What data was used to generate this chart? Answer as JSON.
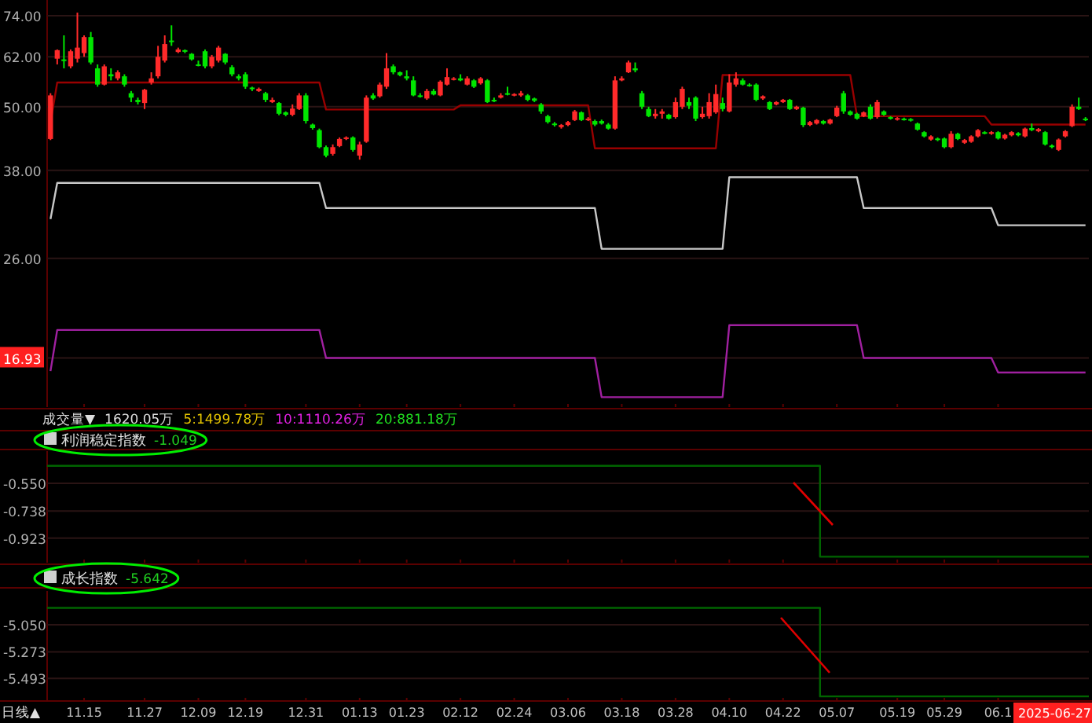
{
  "chart_data": [
    {
      "type": "candlestick",
      "tick_labels": "y",
      "log": true,
      "grid": "y",
      "ylim": [
        13.7,
        79.2
      ],
      "yticks": [
        {
          "value": 74,
          "label": "74.00"
        },
        {
          "value": 62,
          "label": "62.00"
        },
        {
          "value": 50,
          "label": "50.00"
        },
        {
          "value": 38,
          "label": "38.00"
        },
        {
          "value": 26,
          "label": "26.00"
        },
        {
          "value": 16.93,
          "label": "16.93"
        }
      ],
      "annotations": [
        "成交量▼",
        "1620.05万",
        "5:1499.78万",
        "10:1110.26万",
        "20:881.18万"
      ],
      "categories": [
        null,
        null,
        null,
        null,
        null,
        "11.15",
        null,
        null,
        null,
        null,
        null,
        null,
        null,
        null,
        "11.27",
        null,
        null,
        null,
        null,
        null,
        null,
        null,
        "12.09",
        null,
        null,
        null,
        null,
        null,
        null,
        "12.19",
        null,
        null,
        null,
        null,
        null,
        null,
        null,
        null,
        "12.31",
        null,
        null,
        null,
        null,
        null,
        null,
        null,
        "01.13",
        null,
        null,
        null,
        null,
        null,
        null,
        "01.23",
        null,
        null,
        null,
        null,
        null,
        null,
        null,
        "02.12",
        null,
        null,
        null,
        null,
        null,
        null,
        null,
        "02.24",
        null,
        null,
        null,
        null,
        null,
        null,
        null,
        "03.06",
        null,
        null,
        null,
        null,
        null,
        null,
        null,
        "03.18",
        null,
        null,
        null,
        null,
        null,
        null,
        null,
        "03.28",
        null,
        null,
        null,
        null,
        null,
        null,
        null,
        "04.10",
        null,
        null,
        null,
        null,
        null,
        null,
        null,
        "04.22",
        null,
        null,
        null,
        null,
        null,
        null,
        null,
        "05.07",
        null,
        null,
        null,
        null,
        null,
        null,
        null,
        null,
        "05.19",
        null,
        null,
        null,
        null,
        null,
        null,
        "05.29",
        null,
        null,
        null,
        null,
        null,
        null,
        null,
        "06.1",
        null,
        null,
        null,
        null,
        null,
        null,
        null,
        null,
        null,
        null,
        null,
        null,
        null
      ],
      "ohlc": [
        [
          43.5,
          53,
          43.3,
          52.5
        ],
        [
          61.5,
          64,
          60,
          63.8
        ],
        [
          61.3,
          68,
          59,
          61
        ],
        [
          59.5,
          64,
          59,
          63.5
        ],
        [
          61.5,
          75,
          60.5,
          64.5
        ],
        [
          63,
          68,
          62,
          67.5
        ],
        [
          67.5,
          69,
          60,
          60.5
        ],
        [
          59,
          60,
          54.5,
          55
        ],
        [
          55,
          60,
          54.8,
          59.5
        ],
        [
          57.5,
          59,
          56,
          57
        ],
        [
          56.5,
          58.5,
          56,
          58
        ],
        [
          57,
          57.5,
          54.5,
          55
        ],
        [
          53,
          53.5,
          51,
          52
        ],
        [
          51.5,
          52,
          50.5,
          51
        ],
        [
          50.8,
          54,
          49.5,
          53.8
        ],
        [
          55.5,
          58,
          55,
          56.5
        ],
        [
          57,
          65,
          56.5,
          62
        ],
        [
          61,
          68,
          60.5,
          65.5
        ],
        [
          66.5,
          71,
          65,
          66.4
        ],
        [
          63.3,
          64.5,
          63,
          64
        ],
        [
          63.8,
          64,
          63,
          63.5
        ],
        [
          62.8,
          63,
          61,
          61.3
        ],
        [
          60,
          61,
          59.5,
          59.8
        ],
        [
          63.5,
          64,
          59,
          59.5
        ],
        [
          59.5,
          62.5,
          59,
          62
        ],
        [
          61,
          65,
          60.5,
          64.5
        ],
        [
          62.8,
          63,
          60,
          60.5
        ],
        [
          59.3,
          59.8,
          57,
          57.5
        ],
        [
          57,
          57.5,
          56,
          56.5
        ],
        [
          57.5,
          58,
          54,
          54.5
        ],
        [
          54.3,
          54.5,
          53.5,
          54
        ],
        [
          53.5,
          54.3,
          53.3,
          54
        ],
        [
          53,
          53.3,
          51,
          51.5
        ],
        [
          51,
          52,
          50.8,
          51.5
        ],
        [
          50.8,
          51,
          48.2,
          48.5
        ],
        [
          48.8,
          49,
          48,
          48.3
        ],
        [
          48.3,
          50.5,
          48,
          49.6
        ],
        [
          49.5,
          53,
          49.3,
          52.5
        ],
        [
          52.5,
          53,
          46.5,
          47
        ],
        [
          46.3,
          46.5,
          45.3,
          45.6
        ],
        [
          45.2,
          45.5,
          41.8,
          42
        ],
        [
          42,
          42.3,
          40.2,
          40.5
        ],
        [
          40.8,
          42.5,
          40.5,
          42
        ],
        [
          42.2,
          43.8,
          42,
          43.5
        ],
        [
          43.5,
          44,
          43.3,
          43.8
        ],
        [
          43.8,
          44,
          41.2,
          41.5
        ],
        [
          40.5,
          43,
          39.8,
          42.5
        ],
        [
          43,
          52.5,
          42.8,
          52
        ],
        [
          52.5,
          53,
          51.5,
          51.8
        ],
        [
          52.3,
          55.5,
          52,
          55
        ],
        [
          54.5,
          63,
          54,
          59
        ],
        [
          59.5,
          60,
          57.5,
          58
        ],
        [
          58,
          58.2,
          57,
          57.3
        ],
        [
          57,
          58.5,
          56,
          56.5
        ],
        [
          56,
          57,
          52.3,
          52.5
        ],
        [
          52.5,
          53,
          52,
          52.3
        ],
        [
          51.8,
          54,
          51.5,
          53.5
        ],
        [
          53.5,
          54,
          52.5,
          52.7
        ],
        [
          52.5,
          56,
          52.3,
          55.7
        ],
        [
          55,
          59,
          54.8,
          56.8
        ],
        [
          56.2,
          56.8,
          56,
          56.5
        ],
        [
          56.5,
          57.5,
          55.8,
          56
        ],
        [
          55,
          57,
          54.8,
          56.5
        ],
        [
          56,
          56.3,
          54.2,
          54.5
        ],
        [
          55.3,
          56.8,
          55,
          56.5
        ],
        [
          56,
          56.3,
          50.8,
          51
        ],
        [
          51.5,
          52,
          51,
          51.2
        ],
        [
          52,
          53,
          51.8,
          52.5
        ],
        [
          53,
          54.5,
          52.5,
          52.8
        ],
        [
          52.5,
          53,
          52.3,
          52.8
        ],
        [
          52.5,
          53.5,
          52.2,
          53
        ],
        [
          52.5,
          52.8,
          51.2,
          51.5
        ],
        [
          51.8,
          52,
          51,
          51.3
        ],
        [
          50.5,
          50.8,
          48.5,
          49
        ],
        [
          48,
          48.3,
          46.5,
          46.8
        ],
        [
          46.5,
          46.8,
          45.9,
          46.2
        ],
        [
          45.8,
          46.4,
          45.5,
          46.2
        ],
        [
          46.2,
          47,
          46,
          46.8
        ],
        [
          47.2,
          49.3,
          47,
          49
        ],
        [
          48.8,
          49,
          47,
          47.2
        ],
        [
          47.2,
          47.8,
          47,
          47.5
        ],
        [
          47,
          47.3,
          46,
          46.3
        ],
        [
          47,
          47.3,
          46.3,
          46.5
        ],
        [
          46.3,
          46.6,
          45.3,
          45.5
        ],
        [
          45.5,
          57,
          45.3,
          56
        ],
        [
          56,
          57,
          55.8,
          56.5
        ],
        [
          58,
          61,
          57.8,
          60.5
        ],
        [
          59,
          60.5,
          58,
          58.5
        ],
        [
          53,
          53.5,
          49.5,
          50
        ],
        [
          49.5,
          50,
          47.8,
          48
        ],
        [
          48,
          49.5,
          47.5,
          48.5
        ],
        [
          48.5,
          49.5,
          47.5,
          49
        ],
        [
          48.3,
          48.5,
          47.3,
          47.5
        ],
        [
          47.8,
          52,
          47.5,
          51
        ],
        [
          50,
          54.5,
          49.5,
          54
        ],
        [
          51,
          52,
          49.5,
          50.2
        ],
        [
          52,
          52.3,
          47,
          47.5
        ],
        [
          47.8,
          50,
          47.5,
          48.5
        ],
        [
          48,
          53,
          47.5,
          51
        ],
        [
          48.8,
          55,
          48.5,
          52.8
        ],
        [
          50.8,
          52,
          49,
          49.5
        ],
        [
          49,
          57.5,
          48.8,
          55.5
        ],
        [
          55,
          58,
          54.5,
          56.5
        ],
        [
          56,
          56.5,
          54.8,
          55
        ],
        [
          55,
          55.3,
          54.5,
          54.8
        ],
        [
          55,
          55.3,
          51.2,
          51.5
        ],
        [
          51.8,
          52.5,
          51.5,
          52.3
        ],
        [
          51,
          51.2,
          49.3,
          49.5
        ],
        [
          50.5,
          51.2,
          50.3,
          51
        ],
        [
          51,
          51.7,
          50.8,
          51.5
        ],
        [
          51.5,
          51.7,
          49.3,
          49.5
        ],
        [
          49.5,
          50.2,
          49.3,
          50
        ],
        [
          49.8,
          50,
          45.8,
          46.2
        ],
        [
          46.2,
          47,
          46,
          46.8
        ],
        [
          46.5,
          47.4,
          46.3,
          47.2
        ],
        [
          47,
          47.2,
          46.3,
          46.5
        ],
        [
          46.5,
          47.5,
          46.3,
          47.3
        ],
        [
          48,
          50.2,
          47.8,
          49.8
        ],
        [
          53,
          53.5,
          48.5,
          49
        ],
        [
          49,
          49.2,
          48.1,
          48.3
        ],
        [
          48.5,
          48.7,
          47.3,
          47.5
        ],
        [
          48,
          49,
          47.8,
          48.8
        ],
        [
          50,
          50.5,
          47.3,
          47.5
        ],
        [
          47.8,
          51.5,
          47.5,
          51
        ],
        [
          49,
          49.2,
          48.1,
          48.3
        ],
        [
          47.8,
          48,
          47.3,
          47.5
        ],
        [
          47.3,
          47.8,
          47.1,
          47.6
        ],
        [
          47.5,
          47.7,
          47.1,
          47.3
        ],
        [
          47.4,
          47.6,
          46.9,
          47.1
        ],
        [
          46.5,
          46.7,
          45.1,
          45.3
        ],
        [
          44.8,
          45,
          43.8,
          44
        ],
        [
          43.4,
          44.2,
          43.2,
          44
        ],
        [
          43.6,
          43.8,
          43.1,
          43.3
        ],
        [
          43.6,
          43.8,
          41.8,
          42
        ],
        [
          42,
          45,
          41.8,
          44.5
        ],
        [
          44.5,
          44.7,
          43.3,
          43.5
        ],
        [
          42.8,
          43.5,
          42.6,
          43.3
        ],
        [
          43,
          44.2,
          42.8,
          44
        ],
        [
          44,
          45.4,
          43.8,
          45.2
        ],
        [
          44.8,
          45,
          44.4,
          44.6
        ],
        [
          44.5,
          45,
          44.3,
          44.8
        ],
        [
          44.8,
          45,
          43.4,
          43.6
        ],
        [
          43.6,
          44.5,
          43.4,
          44.3
        ],
        [
          44.2,
          45,
          44,
          44.8
        ],
        [
          44.6,
          44.8,
          44,
          44.2
        ],
        [
          44,
          45.7,
          43.8,
          45.5
        ],
        [
          45.6,
          46.5,
          45,
          45.2
        ],
        [
          45,
          45.6,
          44.8,
          45.4
        ],
        [
          44.8,
          45,
          42.3,
          42.5
        ],
        [
          42.3,
          42.5,
          41.8,
          42
        ],
        [
          41.5,
          43.6,
          41.3,
          43.4
        ],
        [
          44,
          45.2,
          43.8,
          45
        ],
        [
          46,
          50.5,
          45.8,
          50
        ],
        [
          50,
          52,
          49.3,
          49.5
        ],
        [
          47.5,
          47.8,
          47,
          47.2
        ]
      ],
      "series": [
        {
          "type": "line",
          "color": "#990000",
          "values": [
            46.7,
            55.5,
            55.5,
            55.5,
            55.5,
            55.5,
            55.5,
            55.5,
            55.5,
            55.5,
            55.5,
            55.5,
            55.5,
            55.5,
            55.5,
            55.5,
            55.5,
            55.5,
            55.5,
            55.5,
            55.5,
            55.5,
            55.5,
            55.5,
            55.5,
            55.5,
            55.5,
            55.5,
            55.5,
            55.5,
            55.5,
            55.5,
            55.5,
            55.5,
            55.5,
            55.5,
            55.5,
            55.5,
            55.5,
            55.5,
            55.5,
            49.4,
            49.4,
            49.4,
            49.4,
            49.4,
            49.4,
            49.4,
            49.4,
            49.4,
            49.4,
            49.4,
            49.4,
            49.4,
            49.4,
            49.4,
            49.4,
            49.4,
            49.4,
            49.4,
            49.4,
            50.3,
            50.3,
            50.3,
            50.3,
            50.3,
            50.3,
            50.3,
            50.3,
            50.3,
            50.3,
            50.3,
            50.3,
            50.3,
            50.3,
            50.3,
            50.3,
            50.3,
            50.3,
            50.3,
            50.3,
            41.8,
            41.8,
            41.8,
            41.8,
            41.8,
            41.8,
            41.8,
            41.8,
            41.8,
            41.8,
            41.8,
            41.8,
            41.8,
            41.8,
            41.8,
            41.8,
            41.8,
            41.8,
            41.8,
            57.3,
            57.3,
            57.3,
            57.3,
            57.3,
            57.3,
            57.3,
            57.3,
            57.3,
            57.3,
            57.3,
            57.3,
            57.3,
            57.3,
            57.3,
            57.3,
            57.3,
            57.3,
            57.3,
            57.3,
            48.0,
            48.0,
            48.0,
            48.0,
            48.0,
            48.0,
            48.0,
            48.0,
            48.0,
            48.0,
            48.0,
            48.0,
            48.0,
            48.0,
            48.0,
            48.0,
            48.0,
            48.0,
            48.0,
            48.0,
            46.3,
            46.3,
            46.3,
            46.3,
            46.3,
            46.3,
            46.3,
            46.3,
            46.3,
            46.3,
            46.3,
            46.3,
            46.3,
            46.3,
            46.3
          ]
        },
        {
          "type": "line",
          "color": "#c8c8c8",
          "values": [
            30.8,
            36.0,
            36.0,
            36.0,
            36.0,
            36.0,
            36.0,
            36.0,
            36.0,
            36.0,
            36.0,
            36.0,
            36.0,
            36.0,
            36.0,
            36.0,
            36.0,
            36.0,
            36.0,
            36.0,
            36.0,
            36.0,
            36.0,
            36.0,
            36.0,
            36.0,
            36.0,
            36.0,
            36.0,
            36.0,
            36.0,
            36.0,
            36.0,
            36.0,
            36.0,
            36.0,
            36.0,
            36.0,
            36.0,
            36.0,
            36.0,
            32.3,
            32.3,
            32.3,
            32.3,
            32.3,
            32.3,
            32.3,
            32.3,
            32.3,
            32.3,
            32.3,
            32.3,
            32.3,
            32.3,
            32.3,
            32.3,
            32.3,
            32.3,
            32.3,
            32.3,
            32.3,
            32.3,
            32.3,
            32.3,
            32.3,
            32.3,
            32.3,
            32.3,
            32.3,
            32.3,
            32.3,
            32.3,
            32.3,
            32.3,
            32.3,
            32.3,
            32.3,
            32.3,
            32.3,
            32.3,
            32.3,
            27.1,
            27.1,
            27.1,
            27.1,
            27.1,
            27.1,
            27.1,
            27.1,
            27.1,
            27.1,
            27.1,
            27.1,
            27.1,
            27.1,
            27.1,
            27.1,
            27.1,
            27.1,
            27.1,
            36.9,
            36.9,
            36.9,
            36.9,
            36.9,
            36.9,
            36.9,
            36.9,
            36.9,
            36.9,
            36.9,
            36.9,
            36.9,
            36.9,
            36.9,
            36.9,
            36.9,
            36.9,
            36.9,
            36.9,
            32.3,
            32.3,
            32.3,
            32.3,
            32.3,
            32.3,
            32.3,
            32.3,
            32.3,
            32.3,
            32.3,
            32.3,
            32.3,
            32.3,
            32.3,
            32.3,
            32.3,
            32.3,
            32.3,
            32.3,
            30.0,
            30.0,
            30.0,
            30.0,
            30.0,
            30.0,
            30.0,
            30.0,
            30.0,
            30.0,
            30.0,
            30.0,
            30.0,
            30.0
          ]
        },
        {
          "type": "line",
          "color": "#a020a0",
          "values": [
            16.0,
            19.1,
            19.1,
            19.1,
            19.1,
            19.1,
            19.1,
            19.1,
            19.1,
            19.1,
            19.1,
            19.1,
            19.1,
            19.1,
            19.1,
            19.1,
            19.1,
            19.1,
            19.1,
            19.1,
            19.1,
            19.1,
            19.1,
            19.1,
            19.1,
            19.1,
            19.1,
            19.1,
            19.1,
            19.1,
            19.1,
            19.1,
            19.1,
            19.1,
            19.1,
            19.1,
            19.1,
            19.1,
            19.1,
            19.1,
            19.1,
            16.93,
            16.93,
            16.93,
            16.93,
            16.93,
            16.93,
            16.93,
            16.93,
            16.93,
            16.93,
            16.93,
            16.93,
            16.93,
            16.93,
            16.93,
            16.93,
            16.93,
            16.93,
            16.93,
            16.93,
            16.93,
            16.93,
            16.93,
            16.93,
            16.93,
            16.93,
            16.93,
            16.93,
            16.93,
            16.93,
            16.93,
            16.93,
            16.93,
            16.93,
            16.93,
            16.93,
            16.93,
            16.93,
            16.93,
            16.93,
            16.93,
            14.3,
            14.3,
            14.3,
            14.3,
            14.3,
            14.3,
            14.3,
            14.3,
            14.3,
            14.3,
            14.3,
            14.3,
            14.3,
            14.3,
            14.3,
            14.3,
            14.3,
            14.3,
            14.3,
            19.5,
            19.5,
            19.5,
            19.5,
            19.5,
            19.5,
            19.5,
            19.5,
            19.5,
            19.5,
            19.5,
            19.5,
            19.5,
            19.5,
            19.5,
            19.5,
            19.5,
            19.5,
            19.5,
            19.5,
            16.93,
            16.93,
            16.93,
            16.93,
            16.93,
            16.93,
            16.93,
            16.93,
            16.93,
            16.93,
            16.93,
            16.93,
            16.93,
            16.93,
            16.93,
            16.93,
            16.93,
            16.93,
            16.93,
            16.93,
            15.9,
            15.9,
            15.9,
            15.9,
            15.9,
            15.9,
            15.9,
            15.9,
            15.9,
            15.9,
            15.9,
            15.9,
            15.9,
            15.9
          ]
        }
      ]
    },
    {
      "type": "step",
      "tick_labels": "y",
      "grid": "y",
      "title": "利润稳定指数",
      "annotations": [
        "-1.049"
      ],
      "ylim": [
        -1.09,
        -0.33
      ],
      "yticks": [
        {
          "value": -0.55,
          "label": "-0.550"
        },
        {
          "value": -0.738,
          "label": "-0.738"
        },
        {
          "value": -0.923,
          "label": "-0.923"
        }
      ],
      "categories": [
        null,
        null,
        null,
        null,
        null,
        "11.15",
        null,
        null,
        null,
        null,
        null,
        null,
        null,
        null,
        "11.27",
        null,
        null,
        null,
        null,
        null,
        null,
        null,
        "12.09",
        null,
        null,
        null,
        null,
        null,
        null,
        "12.19",
        null,
        null,
        null,
        null,
        null,
        null,
        null,
        null,
        "12.31",
        null,
        null,
        null,
        null,
        null,
        null,
        null,
        "01.13",
        null,
        null,
        null,
        null,
        null,
        null,
        "01.23",
        null,
        null,
        null,
        null,
        null,
        null,
        null,
        "02.12",
        null,
        null,
        null,
        null,
        null,
        null,
        null,
        "02.24",
        null,
        null,
        null,
        null,
        null,
        null,
        null,
        "03.06",
        null,
        null,
        null,
        null,
        null,
        null,
        null,
        "03.18",
        null,
        null,
        null,
        null,
        null,
        null,
        null,
        "03.28",
        null,
        null,
        null,
        null,
        null,
        null,
        null,
        "04.10",
        null,
        null,
        null,
        null,
        null,
        null,
        null,
        "04.22",
        null,
        null,
        null,
        null,
        null,
        null,
        null,
        "05.07",
        null,
        null,
        null,
        null,
        null,
        null,
        null,
        null,
        "05.19",
        null,
        null,
        null,
        null,
        null,
        null,
        "05.29",
        null,
        null,
        null,
        null,
        null,
        null,
        null,
        "06.1",
        null,
        null,
        null,
        null,
        null,
        null,
        null,
        null,
        null,
        null,
        null,
        null,
        null
      ],
      "series": [
        {
          "color": "#006400",
          "values": [
            -0.43,
            -0.43,
            -0.43,
            -0.43,
            -0.43,
            -0.43,
            -0.43,
            -0.43,
            -0.43,
            -0.43,
            -0.43,
            -0.43,
            -0.43,
            -0.43,
            -0.43,
            -0.43,
            -0.43,
            -0.43,
            -0.43,
            -0.43,
            -0.43,
            -0.43,
            -0.43,
            -0.43,
            -0.43,
            -0.43,
            -0.43,
            -0.43,
            -0.43,
            -0.43,
            -0.43,
            -0.43,
            -0.43,
            -0.43,
            -0.43,
            -0.43,
            -0.43,
            -0.43,
            -0.43,
            -0.43,
            -0.43,
            -0.43,
            -0.43,
            -0.43,
            -0.43,
            -0.43,
            -0.43,
            -0.43,
            -0.43,
            -0.43,
            -0.43,
            -0.43,
            -0.43,
            -0.43,
            -0.43,
            -0.43,
            -0.43,
            -0.43,
            -0.43,
            -0.43,
            -0.43,
            -0.43,
            -0.43,
            -0.43,
            -0.43,
            -0.43,
            -0.43,
            -0.43,
            -0.43,
            -0.43,
            -0.43,
            -0.43,
            -0.43,
            -0.43,
            -0.43,
            -0.43,
            -0.43,
            -0.43,
            -0.43,
            -0.43,
            -0.43,
            -0.43,
            -0.43,
            -0.43,
            -0.43,
            -0.43,
            -0.43,
            -0.43,
            -0.43,
            -0.43,
            -0.43,
            -0.43,
            -0.43,
            -0.43,
            -0.43,
            -0.43,
            -0.43,
            -0.43,
            -0.43,
            -0.43,
            -0.43,
            -0.43,
            -0.43,
            -0.43,
            -0.43,
            -0.43,
            -0.43,
            -0.43,
            -0.43,
            -0.43,
            -0.43,
            -0.43,
            -0.43,
            -0.43,
            -0.43,
            -1.049,
            -1.049,
            -1.049,
            -1.049,
            -1.049,
            -1.049,
            -1.049,
            -1.049,
            -1.049,
            -1.049,
            -1.049,
            -1.049,
            -1.049,
            -1.049,
            -1.049,
            -1.049,
            -1.049,
            -1.049,
            -1.049,
            -1.049,
            -1.049,
            -1.049,
            -1.049,
            -1.049,
            -1.049,
            -1.049,
            -1.049,
            -1.049,
            -1.049,
            -1.049,
            -1.049,
            -1.049,
            -1.049,
            -1.049,
            -1.049,
            -1.049,
            -1.049,
            -1.049,
            -1.049,
            -1.049
          ]
        }
      ]
    },
    {
      "type": "step",
      "grid": "y",
      "title": "成长指数",
      "annotations": [
        "-5.642",
        "日线▲",
        "2025-06-27"
      ],
      "ylim": [
        -5.68,
        -4.77
      ],
      "yticks": [
        {
          "value": -5.05,
          "label": "-5.050"
        },
        {
          "value": -5.273,
          "label": "-5.273"
        },
        {
          "value": -5.493,
          "label": "-5.493"
        }
      ],
      "categories": [
        null,
        null,
        null,
        null,
        null,
        "11.15",
        null,
        null,
        null,
        null,
        null,
        null,
        null,
        null,
        "11.27",
        null,
        null,
        null,
        null,
        null,
        null,
        null,
        "12.09",
        null,
        null,
        null,
        null,
        null,
        null,
        "12.19",
        null,
        null,
        null,
        null,
        null,
        null,
        null,
        null,
        "12.31",
        null,
        null,
        null,
        null,
        null,
        null,
        null,
        "01.13",
        null,
        null,
        null,
        null,
        null,
        null,
        "01.23",
        null,
        null,
        null,
        null,
        null,
        null,
        null,
        "02.12",
        null,
        null,
        null,
        null,
        null,
        null,
        null,
        "02.24",
        null,
        null,
        null,
        null,
        null,
        null,
        null,
        "03.06",
        null,
        null,
        null,
        null,
        null,
        null,
        null,
        "03.18",
        null,
        null,
        null,
        null,
        null,
        null,
        null,
        "03.28",
        null,
        null,
        null,
        null,
        null,
        null,
        null,
        "04.10",
        null,
        null,
        null,
        null,
        null,
        null,
        null,
        "04.22",
        null,
        null,
        null,
        null,
        null,
        null,
        null,
        "05.07",
        null,
        null,
        null,
        null,
        null,
        null,
        null,
        null,
        "05.19",
        null,
        null,
        null,
        null,
        null,
        null,
        "05.29",
        null,
        null,
        null,
        null,
        null,
        null,
        null,
        "06.1",
        null,
        null,
        null,
        null,
        null,
        null,
        null,
        null,
        null,
        null,
        null,
        null,
        null
      ],
      "series": [
        {
          "color": "#006400",
          "values": [
            -4.91,
            -4.91,
            -4.91,
            -4.91,
            -4.91,
            -4.91,
            -4.91,
            -4.91,
            -4.91,
            -4.91,
            -4.91,
            -4.91,
            -4.91,
            -4.91,
            -4.91,
            -4.91,
            -4.91,
            -4.91,
            -4.91,
            -4.91,
            -4.91,
            -4.91,
            -4.91,
            -4.91,
            -4.91,
            -4.91,
            -4.91,
            -4.91,
            -4.91,
            -4.91,
            -4.91,
            -4.91,
            -4.91,
            -4.91,
            -4.91,
            -4.91,
            -4.91,
            -4.91,
            -4.91,
            -4.91,
            -4.91,
            -4.91,
            -4.91,
            -4.91,
            -4.91,
            -4.91,
            -4.91,
            -4.91,
            -4.91,
            -4.91,
            -4.91,
            -4.91,
            -4.91,
            -4.91,
            -4.91,
            -4.91,
            -4.91,
            -4.91,
            -4.91,
            -4.91,
            -4.91,
            -4.91,
            -4.91,
            -4.91,
            -4.91,
            -4.91,
            -4.91,
            -4.91,
            -4.91,
            -4.91,
            -4.91,
            -4.91,
            -4.91,
            -4.91,
            -4.91,
            -4.91,
            -4.91,
            -4.91,
            -4.91,
            -4.91,
            -4.91,
            -4.91,
            -4.91,
            -4.91,
            -4.91,
            -4.91,
            -4.91,
            -4.91,
            -4.91,
            -4.91,
            -4.91,
            -4.91,
            -4.91,
            -4.91,
            -4.91,
            -4.91,
            -4.91,
            -4.91,
            -4.91,
            -4.91,
            -4.91,
            -4.91,
            -4.91,
            -4.91,
            -4.91,
            -4.91,
            -4.91,
            -4.91,
            -4.91,
            -4.91,
            -4.91,
            -4.91,
            -4.91,
            -4.91,
            -4.91,
            -5.642,
            -5.642,
            -5.642,
            -5.642,
            -5.642,
            -5.642,
            -5.642,
            -5.642,
            -5.642,
            -5.642,
            -5.642,
            -5.642,
            -5.642,
            -5.642,
            -5.642,
            -5.642,
            -5.642,
            -5.642,
            -5.642,
            -5.642,
            -5.642,
            -5.642,
            -5.642,
            -5.642,
            -5.642,
            -5.642,
            -5.642,
            -5.642,
            -5.642,
            -5.642,
            -5.642,
            -5.642,
            -5.642,
            -5.642,
            -5.642,
            -5.642,
            -5.642,
            -5.642,
            -5.642,
            -5.642
          ]
        }
      ]
    }
  ]
}
